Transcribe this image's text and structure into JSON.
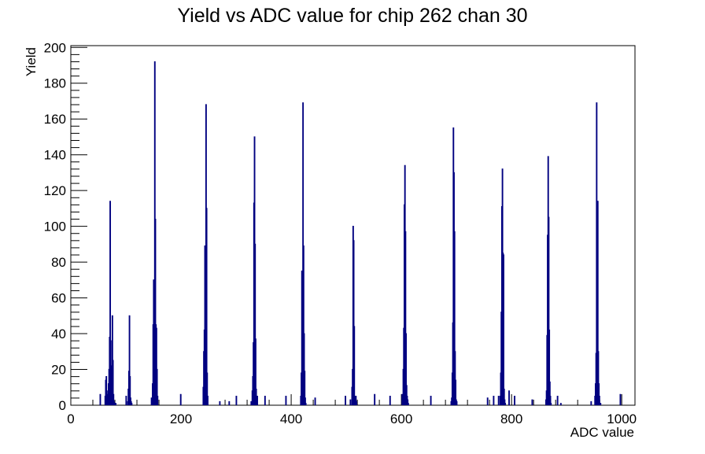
{
  "chart_data": {
    "type": "bar",
    "title": "Yield vs ADC value for chip 262 chan 30",
    "xlabel": "ADC value",
    "ylabel": "Yield",
    "xlim": [
      0,
      1024
    ],
    "ylim": [
      0,
      201
    ],
    "x_ticks": [
      0,
      200,
      400,
      600,
      800,
      1000
    ],
    "y_ticks": [
      0,
      20,
      40,
      60,
      80,
      100,
      120,
      140,
      160,
      180,
      200
    ],
    "grid": false,
    "legend": "none",
    "line_color": "#000080",
    "series": [
      {
        "x": [
          53,
          62,
          63,
          64,
          65,
          66,
          67,
          68,
          69,
          70,
          71,
          72,
          73,
          74,
          75,
          76,
          77,
          78,
          79,
          80,
          81,
          100,
          103,
          104,
          105,
          106,
          107,
          108,
          109,
          110,
          146,
          148,
          149,
          150,
          151,
          152,
          153,
          154,
          155,
          156,
          157,
          199,
          240,
          241,
          242,
          243,
          244,
          245,
          246,
          247,
          248,
          270,
          287,
          300,
          327,
          329,
          330,
          331,
          332,
          333,
          334,
          335,
          336,
          337,
          338,
          352,
          390,
          417,
          418,
          419,
          420,
          421,
          422,
          423,
          424,
          425,
          426,
          443,
          498,
          507,
          510,
          511,
          512,
          513,
          514,
          515,
          516,
          517,
          518,
          551,
          579,
          601,
          603,
          604,
          605,
          606,
          607,
          608,
          609,
          610,
          611,
          612,
          653,
          690,
          691,
          692,
          693,
          694,
          695,
          696,
          697,
          698,
          699,
          700,
          756,
          767,
          776,
          779,
          780,
          781,
          782,
          783,
          784,
          785,
          786,
          787,
          788,
          795,
          805,
          837,
          862,
          863,
          864,
          865,
          866,
          867,
          868,
          869,
          870,
          871,
          883,
          889,
          944,
          951,
          952,
          953,
          954,
          955,
          956,
          957,
          958,
          959,
          960,
          961,
          997
        ],
        "values": [
          6,
          5,
          14,
          16,
          8,
          3,
          6,
          12,
          20,
          38,
          114,
          36,
          22,
          18,
          50,
          25,
          6,
          2,
          1,
          1,
          1,
          5,
          2,
          9,
          19,
          50,
          16,
          4,
          2,
          1,
          4,
          12,
          45,
          70,
          62,
          192,
          104,
          45,
          43,
          20,
          5,
          6,
          10,
          30,
          42,
          89,
          74,
          168,
          110,
          18,
          5,
          2,
          2,
          5,
          2,
          8,
          16,
          35,
          113,
          150,
          90,
          37,
          9,
          3,
          5,
          5,
          5,
          5,
          18,
          75,
          65,
          169,
          89,
          40,
          19,
          4,
          1,
          4,
          5,
          3,
          10,
          20,
          100,
          92,
          44,
          5,
          2,
          5,
          2,
          6,
          5,
          6,
          20,
          43,
          112,
          134,
          97,
          40,
          11,
          5,
          3,
          1,
          5,
          2,
          4,
          18,
          46,
          155,
          130,
          97,
          30,
          14,
          3,
          2,
          4,
          5,
          5,
          5,
          18,
          52,
          111,
          132,
          85,
          84,
          9,
          3,
          1,
          8,
          5,
          3,
          3,
          8,
          39,
          95,
          139,
          105,
          42,
          13,
          5,
          1,
          5,
          1,
          2,
          5,
          12,
          29,
          169,
          94,
          114,
          30,
          12,
          5,
          1,
          1,
          6
        ]
      }
    ]
  }
}
